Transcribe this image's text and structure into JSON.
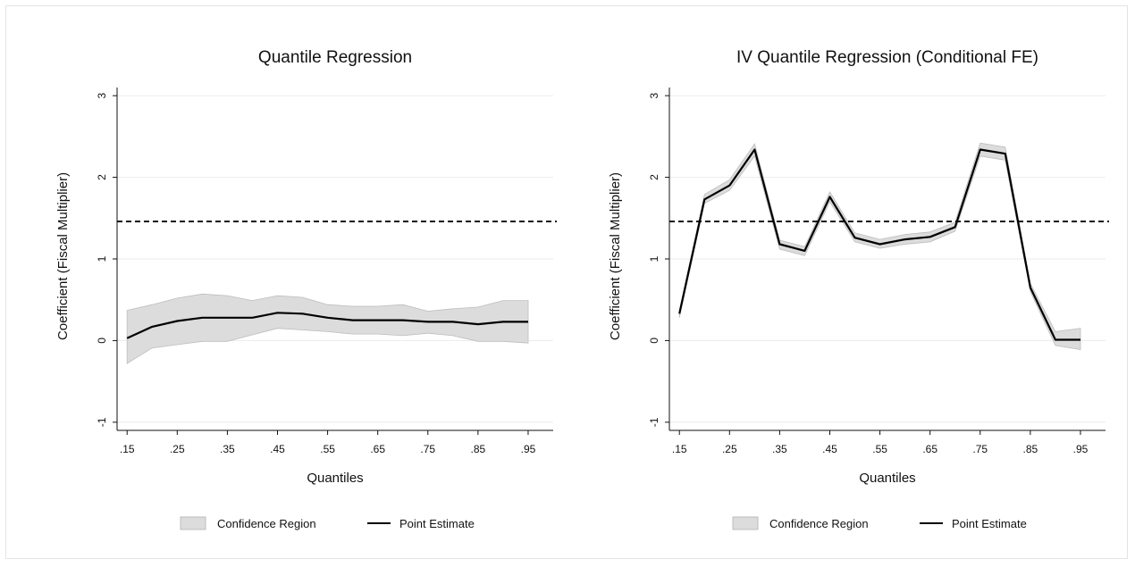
{
  "chart_data": [
    {
      "type": "line",
      "title": "Quantile Regression",
      "xlabel": "Quantiles",
      "ylabel": "Coefficient (Fiscal Multiplier)",
      "x": [
        0.15,
        0.2,
        0.25,
        0.3,
        0.35,
        0.4,
        0.45,
        0.5,
        0.55,
        0.6,
        0.65,
        0.7,
        0.75,
        0.8,
        0.85,
        0.9,
        0.95
      ],
      "xtick_values": [
        0.15,
        0.25,
        0.35,
        0.45,
        0.55,
        0.65,
        0.75,
        0.85,
        0.95
      ],
      "xtick_labels": [
        ".15",
        ".25",
        ".35",
        ".45",
        ".55",
        ".65",
        ".75",
        ".85",
        ".95"
      ],
      "ytick_values": [
        -1,
        0,
        1,
        2,
        3
      ],
      "ytick_labels": [
        "-1",
        "0",
        "1",
        "2",
        "3"
      ],
      "xlim": [
        0.13,
        1.0
      ],
      "ylim": [
        -1.1,
        3.1
      ],
      "grid": "horizontal",
      "legend_position": "bottom",
      "reference_line": 1.46,
      "series": [
        {
          "name": "Confidence Region",
          "kind": "band",
          "lower": [
            -0.28,
            -0.09,
            -0.05,
            -0.01,
            -0.01,
            0.07,
            0.15,
            0.13,
            0.11,
            0.08,
            0.08,
            0.06,
            0.09,
            0.06,
            -0.01,
            -0.01,
            -0.03
          ],
          "upper": [
            0.37,
            0.44,
            0.52,
            0.57,
            0.55,
            0.49,
            0.55,
            0.53,
            0.44,
            0.42,
            0.42,
            0.44,
            0.36,
            0.39,
            0.41,
            0.49,
            0.49
          ],
          "color": "#dcdcdc"
        },
        {
          "name": "Point Estimate",
          "kind": "line",
          "values": [
            0.03,
            0.17,
            0.24,
            0.28,
            0.28,
            0.28,
            0.34,
            0.33,
            0.28,
            0.25,
            0.25,
            0.25,
            0.23,
            0.23,
            0.2,
            0.23,
            0.23
          ],
          "color": "#000000"
        }
      ]
    },
    {
      "type": "line",
      "title": "IV Quantile Regression (Conditional FE)",
      "xlabel": "Quantiles",
      "ylabel": "Coefficient (Fiscal Multiplier)",
      "x": [
        0.15,
        0.2,
        0.25,
        0.3,
        0.35,
        0.4,
        0.45,
        0.5,
        0.55,
        0.6,
        0.65,
        0.7,
        0.75,
        0.8,
        0.85,
        0.9,
        0.95
      ],
      "xtick_values": [
        0.15,
        0.25,
        0.35,
        0.45,
        0.55,
        0.65,
        0.75,
        0.85,
        0.95
      ],
      "xtick_labels": [
        ".15",
        ".25",
        ".35",
        ".45",
        ".55",
        ".65",
        ".75",
        ".85",
        ".95"
      ],
      "ytick_values": [
        -1,
        0,
        1,
        2,
        3
      ],
      "ytick_labels": [
        "-1",
        "0",
        "1",
        "2",
        "3"
      ],
      "xlim": [
        0.13,
        1.0
      ],
      "ylim": [
        -1.1,
        3.1
      ],
      "grid": "horizontal",
      "legend_position": "bottom",
      "reference_line": 1.46,
      "series": [
        {
          "name": "Confidence Region",
          "kind": "band",
          "lower": [
            0.28,
            1.68,
            1.84,
            2.26,
            1.12,
            1.04,
            1.7,
            1.21,
            1.13,
            1.18,
            1.21,
            1.34,
            2.26,
            2.21,
            0.6,
            -0.06,
            -0.11
          ],
          "upper": [
            0.37,
            1.79,
            1.97,
            2.41,
            1.23,
            1.15,
            1.82,
            1.32,
            1.24,
            1.3,
            1.33,
            1.45,
            2.42,
            2.37,
            0.7,
            0.11,
            0.15
          ],
          "color": "#dcdcdc"
        },
        {
          "name": "Point Estimate",
          "kind": "line",
          "values": [
            0.33,
            1.73,
            1.9,
            2.34,
            1.18,
            1.1,
            1.76,
            1.26,
            1.18,
            1.24,
            1.27,
            1.39,
            2.34,
            2.29,
            0.65,
            0.01,
            0.01
          ],
          "color": "#000000"
        }
      ]
    }
  ]
}
